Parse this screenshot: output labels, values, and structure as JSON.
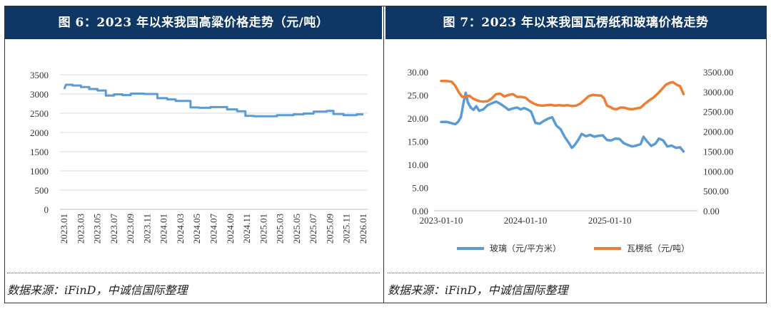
{
  "left_panel": {
    "title": "图 6：2023 年以来我国高粱价格走势（元/吨）",
    "source": "数据来源：iFinD，中诚信国际整理"
  },
  "right_panel": {
    "title": "图 7：2023 年以来我国瓦楞纸和玻璃价格走势",
    "source": "数据来源：iFinD，中诚信国际整理"
  },
  "colors": {
    "header_bg": "#0f3766",
    "series_blue": "#5b9bd5",
    "series_orange": "#ed7d31",
    "grid": "#d9d9d9"
  },
  "chart_data": [
    {
      "type": "line",
      "title": "图 6：2023 年以来我国高粱价格走势（元/吨）",
      "xlabel": "",
      "ylabel": "",
      "ylim": [
        0,
        3500
      ],
      "yticks": [
        "0",
        "500",
        "1000",
        "1500",
        "2000",
        "2500",
        "3000",
        "3500"
      ],
      "xticks": [
        "2023.01",
        "2023.03",
        "2023.05",
        "2023.07",
        "2023.09",
        "2023.11",
        "2024.01",
        "2024.03",
        "2024.05",
        "2024.07",
        "2024.09",
        "2024.11",
        "2025.01",
        "2025.03",
        "2025.05",
        "2025.07",
        "2025.09",
        "2025.11",
        "2026.01"
      ],
      "series": [
        {
          "name": "高粱",
          "points": [
            [
              0,
              3130
            ],
            [
              0.1,
              3240
            ],
            [
              0.5,
              3240
            ],
            [
              0.5,
              3220
            ],
            [
              1.0,
              3220
            ],
            [
              1.0,
              3180
            ],
            [
              1.5,
              3180
            ],
            [
              1.5,
              3130
            ],
            [
              2.0,
              3130
            ],
            [
              2.0,
              3090
            ],
            [
              2.5,
              3090
            ],
            [
              2.5,
              2960
            ],
            [
              3.0,
              2960
            ],
            [
              3.0,
              2990
            ],
            [
              3.5,
              2990
            ],
            [
              3.5,
              2970
            ],
            [
              4.0,
              2970
            ],
            [
              4.0,
              3010
            ],
            [
              4.8,
              3010
            ],
            [
              4.8,
              3000
            ],
            [
              5.6,
              3000
            ],
            [
              5.6,
              2890
            ],
            [
              6.2,
              2890
            ],
            [
              6.2,
              2860
            ],
            [
              6.7,
              2860
            ],
            [
              6.7,
              2820
            ],
            [
              7.6,
              2820
            ],
            [
              7.6,
              2650
            ],
            [
              8.1,
              2650
            ],
            [
              8.1,
              2640
            ],
            [
              8.8,
              2640
            ],
            [
              8.8,
              2660
            ],
            [
              9.8,
              2660
            ],
            [
              9.8,
              2600
            ],
            [
              10.4,
              2600
            ],
            [
              10.4,
              2550
            ],
            [
              10.9,
              2550
            ],
            [
              10.9,
              2430
            ],
            [
              11.4,
              2430
            ],
            [
              11.4,
              2420
            ],
            [
              12.8,
              2420
            ],
            [
              12.8,
              2450
            ],
            [
              13.8,
              2450
            ],
            [
              13.8,
              2470
            ],
            [
              14.4,
              2470
            ],
            [
              14.4,
              2490
            ],
            [
              15.0,
              2490
            ],
            [
              15.0,
              2540
            ],
            [
              15.8,
              2540
            ],
            [
              15.8,
              2560
            ],
            [
              16.2,
              2560
            ],
            [
              16.2,
              2480
            ],
            [
              16.8,
              2480
            ],
            [
              16.8,
              2450
            ],
            [
              17.6,
              2450
            ],
            [
              17.6,
              2470
            ],
            [
              18.0,
              2470
            ]
          ]
        }
      ]
    },
    {
      "type": "line",
      "title": "图 7：2023 年以来我国瓦楞纸和玻璃价格走势",
      "xlabel": "",
      "ylabel": "",
      "ylim": [
        0,
        30
      ],
      "y2lim": [
        0,
        3500
      ],
      "yticks": [
        "0.00",
        "5.00",
        "10.00",
        "15.00",
        "20.00",
        "25.00",
        "30.00"
      ],
      "y2ticks": [
        "0.00",
        "500.00",
        "1000.00",
        "1500.00",
        "2000.00",
        "2500.00",
        "3000.00",
        "3500.00"
      ],
      "xticks": [
        "2023-01-10",
        "2024-01-10",
        "2025-01-10"
      ],
      "x_range_months": [
        0,
        37.5
      ],
      "legend": [
        "玻璃（元/平方米）",
        "瓦楞纸（元/吨）"
      ],
      "legend_placement": "bottom",
      "series": [
        {
          "name": "玻璃（元/平方米）",
          "axis": "left",
          "points": [
            [
              0,
              19.2
            ],
            [
              0.8,
              19.2
            ],
            [
              1.3,
              19.0
            ],
            [
              2.0,
              18.7
            ],
            [
              2.4,
              19.2
            ],
            [
              2.8,
              20.2
            ],
            [
              3.2,
              23.5
            ],
            [
              3.5,
              25.5
            ],
            [
              3.8,
              23.4
            ],
            [
              4.2,
              22.3
            ],
            [
              4.6,
              21.8
            ],
            [
              5.0,
              22.6
            ],
            [
              5.4,
              21.6
            ],
            [
              6.0,
              21.9
            ],
            [
              6.6,
              22.8
            ],
            [
              7.2,
              23.2
            ],
            [
              7.8,
              23.6
            ],
            [
              8.4,
              23.1
            ],
            [
              9.0,
              22.5
            ],
            [
              9.6,
              21.8
            ],
            [
              10.2,
              22.1
            ],
            [
              10.8,
              22.3
            ],
            [
              11.3,
              21.9
            ],
            [
              11.8,
              22.2
            ],
            [
              12.3,
              21.9
            ],
            [
              12.8,
              21.4
            ],
            [
              13.4,
              19.0
            ],
            [
              14.0,
              18.8
            ],
            [
              14.6,
              19.4
            ],
            [
              15.2,
              19.9
            ],
            [
              15.8,
              20.2
            ],
            [
              16.4,
              18.4
            ],
            [
              17.0,
              17.6
            ],
            [
              17.6,
              15.9
            ],
            [
              18.2,
              14.6
            ],
            [
              18.6,
              13.6
            ],
            [
              19.0,
              14.2
            ],
            [
              19.5,
              15.3
            ],
            [
              20.0,
              16.6
            ],
            [
              20.6,
              16.1
            ],
            [
              21.2,
              16.4
            ],
            [
              21.8,
              16.0
            ],
            [
              22.4,
              16.2
            ],
            [
              23.0,
              16.3
            ],
            [
              23.6,
              15.3
            ],
            [
              24.2,
              15.2
            ],
            [
              24.8,
              15.6
            ],
            [
              25.4,
              15.5
            ],
            [
              26.0,
              14.6
            ],
            [
              26.6,
              14.2
            ],
            [
              27.2,
              13.9
            ],
            [
              27.8,
              14.1
            ],
            [
              28.4,
              14.4
            ],
            [
              28.8,
              16.0
            ],
            [
              29.3,
              15.0
            ],
            [
              29.9,
              14.0
            ],
            [
              30.5,
              14.5
            ],
            [
              31.0,
              15.6
            ],
            [
              31.6,
              15.2
            ],
            [
              32.2,
              13.9
            ],
            [
              32.8,
              14.1
            ],
            [
              33.4,
              13.6
            ],
            [
              34.0,
              13.7
            ],
            [
              34.5,
              12.8
            ]
          ]
        },
        {
          "name": "瓦楞纸（元/吨）",
          "axis": "right",
          "points": [
            [
              0,
              3270
            ],
            [
              0.8,
              3270
            ],
            [
              1.5,
              3250
            ],
            [
              2.0,
              3150
            ],
            [
              2.5,
              2990
            ],
            [
              3.0,
              2870
            ],
            [
              3.5,
              2880
            ],
            [
              4.0,
              2900
            ],
            [
              4.5,
              2830
            ],
            [
              5.0,
              2790
            ],
            [
              5.5,
              2760
            ],
            [
              6.0,
              2750
            ],
            [
              6.6,
              2760
            ],
            [
              7.2,
              2830
            ],
            [
              7.8,
              2940
            ],
            [
              8.4,
              2950
            ],
            [
              9.0,
              2880
            ],
            [
              9.6,
              2920
            ],
            [
              10.2,
              2940
            ],
            [
              10.8,
              2870
            ],
            [
              11.4,
              2870
            ],
            [
              12.0,
              2850
            ],
            [
              12.6,
              2760
            ],
            [
              13.2,
              2700
            ],
            [
              13.8,
              2660
            ],
            [
              14.4,
              2650
            ],
            [
              15.0,
              2660
            ],
            [
              15.6,
              2670
            ],
            [
              16.2,
              2650
            ],
            [
              16.8,
              2660
            ],
            [
              17.4,
              2650
            ],
            [
              18.0,
              2660
            ],
            [
              18.6,
              2640
            ],
            [
              19.2,
              2650
            ],
            [
              19.8,
              2700
            ],
            [
              20.4,
              2790
            ],
            [
              21.0,
              2890
            ],
            [
              21.6,
              2920
            ],
            [
              22.2,
              2910
            ],
            [
              22.8,
              2900
            ],
            [
              23.2,
              2830
            ],
            [
              23.6,
              2650
            ],
            [
              24.0,
              2620
            ],
            [
              24.5,
              2570
            ],
            [
              25.0,
              2560
            ],
            [
              25.5,
              2600
            ],
            [
              26.0,
              2600
            ],
            [
              26.6,
              2570
            ],
            [
              27.2,
              2560
            ],
            [
              27.8,
              2580
            ],
            [
              28.4,
              2600
            ],
            [
              29.0,
              2700
            ],
            [
              29.6,
              2780
            ],
            [
              30.2,
              2850
            ],
            [
              30.8,
              2950
            ],
            [
              31.4,
              3060
            ],
            [
              32.0,
              3180
            ],
            [
              32.6,
              3230
            ],
            [
              33.0,
              3240
            ],
            [
              33.5,
              3180
            ],
            [
              34.0,
              3140
            ],
            [
              34.5,
              2940
            ]
          ]
        }
      ]
    }
  ]
}
